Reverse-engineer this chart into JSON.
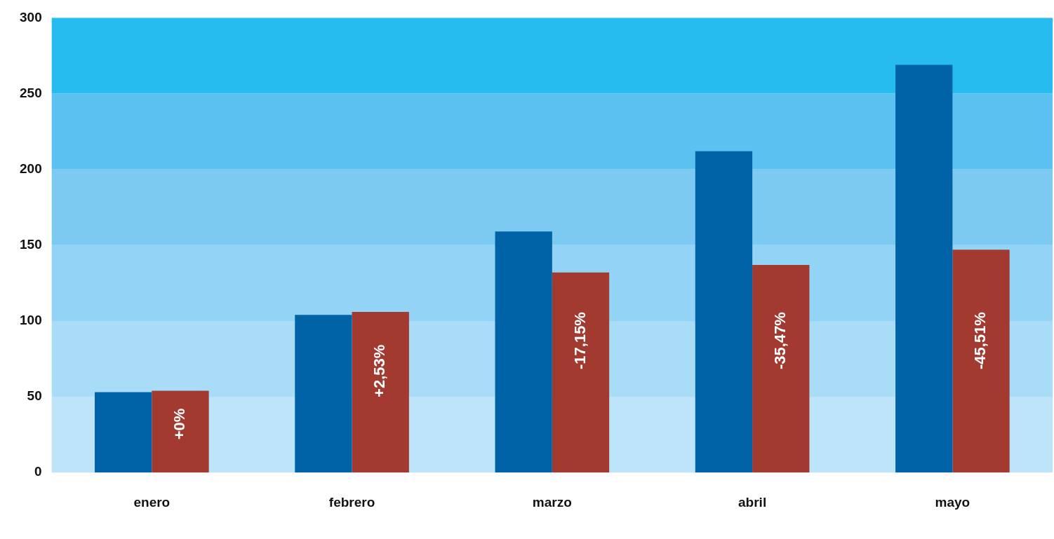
{
  "chart_data": {
    "type": "bar",
    "categories": [
      "enero",
      "febrero",
      "marzo",
      "abril",
      "mayo"
    ],
    "series": [
      {
        "color": "#0063a8",
        "values": [
          53,
          104,
          159,
          212,
          269
        ]
      },
      {
        "color": "#a33a30",
        "values": [
          54,
          106,
          132,
          137,
          147
        ]
      }
    ],
    "annotations": [
      {
        "text": "+0%",
        "x": "enero",
        "y": 32
      },
      {
        "text": "+2,53%",
        "x": "febrero",
        "y": 67
      },
      {
        "text": "-17,15%",
        "x": "marzo",
        "y": 87
      },
      {
        "text": "-35,47%",
        "x": "abril",
        "y": 87
      },
      {
        "text": "-45,51%",
        "x": "mayo",
        "y": 87
      }
    ],
    "bands": [
      {
        "axis": "y",
        "from": 0,
        "to": 50,
        "color": "#bde4f9"
      },
      {
        "axis": "y",
        "from": 50,
        "to": 100,
        "color": "#a8dcf7"
      },
      {
        "axis": "y",
        "from": 100,
        "to": 150,
        "color": "#93d3f5"
      },
      {
        "axis": "y",
        "from": 150,
        "to": 200,
        "color": "#7ccaf2"
      },
      {
        "axis": "y",
        "from": 200,
        "to": 250,
        "color": "#5ac1f0"
      },
      {
        "axis": "y",
        "from": 250,
        "to": 300,
        "color": "#27bcef"
      }
    ],
    "ylim": [
      0,
      300
    ],
    "yticks": [
      0,
      50,
      100,
      150,
      200,
      250,
      300
    ],
    "legend": false
  }
}
